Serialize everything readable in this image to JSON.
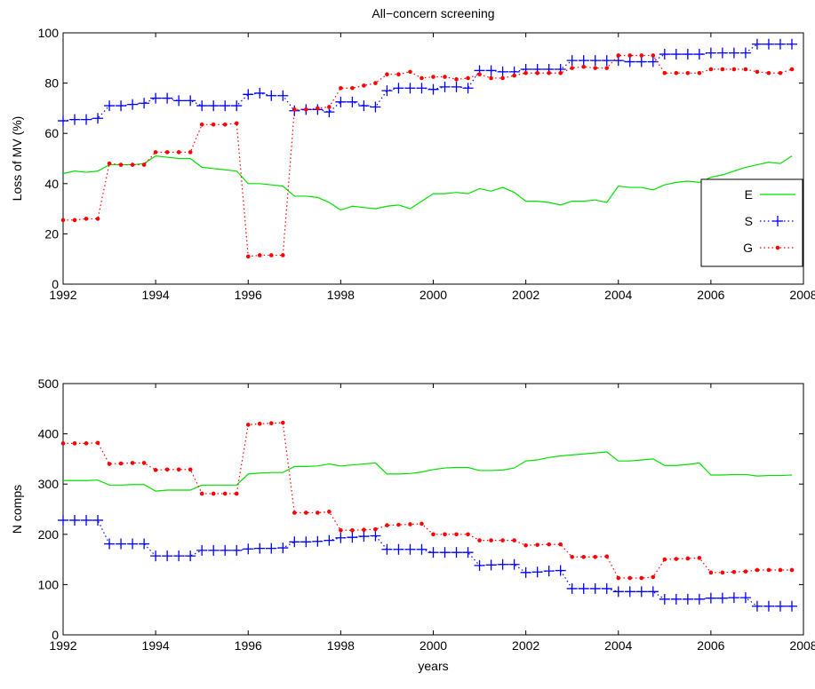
{
  "chart_data": [
    {
      "type": "line",
      "title": "All−concern screening",
      "y_label": "Loss of MV (%)",
      "x": [
        1992,
        1992.25,
        1992.5,
        1992.75,
        1993,
        1993.25,
        1993.5,
        1993.75,
        1994,
        1994.25,
        1994.5,
        1994.75,
        1995,
        1995.25,
        1995.5,
        1995.75,
        1996,
        1996.25,
        1996.5,
        1996.75,
        1997,
        1997.25,
        1997.5,
        1997.75,
        1998,
        1998.25,
        1998.5,
        1998.75,
        1999,
        1999.25,
        1999.5,
        1999.75,
        2000,
        2000.25,
        2000.5,
        2000.75,
        2001,
        2001.25,
        2001.5,
        2001.75,
        2002,
        2002.25,
        2002.5,
        2002.75,
        2003,
        2003.25,
        2003.5,
        2003.75,
        2004,
        2004.25,
        2004.5,
        2004.75,
        2005,
        2005.25,
        2005.5,
        2005.75,
        2006,
        2006.25,
        2006.5,
        2006.75,
        2007,
        2007.25,
        2007.5,
        2007.75
      ],
      "xlim": [
        1992,
        2008
      ],
      "xticks": [
        1992,
        1994,
        1996,
        1998,
        2000,
        2002,
        2004,
        2006,
        2008
      ],
      "ylim": [
        0,
        100
      ],
      "yticks": [
        0,
        20,
        40,
        60,
        80,
        100
      ],
      "legend": "lower right",
      "series": [
        {
          "name": "E",
          "color": "#00e000",
          "linestyle": "solid",
          "marker": "none",
          "values": [
            44,
            45,
            44.5,
            45,
            47.5,
            47.5,
            47.5,
            48,
            51,
            50.5,
            50,
            50,
            46.5,
            46,
            45.5,
            45,
            40,
            40,
            39.5,
            39,
            35,
            35,
            34.5,
            32.5,
            29.5,
            31,
            30.5,
            30,
            31,
            31.5,
            30,
            33,
            36,
            36,
            36.5,
            36,
            38,
            37,
            38.5,
            36.5,
            33,
            33,
            32.5,
            31.5,
            33,
            33,
            33.5,
            32.5,
            39,
            38.5,
            38.5,
            37.5,
            39.5,
            40.5,
            41,
            40.5,
            42.5,
            43.5,
            45,
            46.5,
            47.5,
            48.5,
            48,
            51
          ]
        },
        {
          "name": "S",
          "color": "#0000ff",
          "linestyle": "dotted",
          "marker": "plus",
          "values": [
            65,
            65.5,
            65.5,
            66,
            71,
            71,
            71.5,
            72,
            74,
            74,
            73,
            73,
            71,
            71,
            71,
            71,
            75.5,
            76,
            75,
            75,
            69,
            69.5,
            69.5,
            68.5,
            72.5,
            72.5,
            71,
            70.5,
            77,
            78,
            78,
            78,
            77.5,
            78.5,
            78.5,
            78,
            85,
            85,
            84.5,
            84.5,
            85.5,
            85.5,
            85.5,
            85.5,
            89,
            89,
            89,
            89,
            89,
            88.5,
            88.5,
            88.5,
            91.5,
            91.5,
            91.5,
            91.5,
            92,
            92,
            92,
            92,
            95.5,
            95.5,
            95.5,
            95.5
          ]
        },
        {
          "name": "G",
          "color": "#ff0000",
          "linestyle": "dotted",
          "marker": "dot",
          "values": [
            25.5,
            25.5,
            26,
            26,
            48,
            47.5,
            47.5,
            47.5,
            52.5,
            52.5,
            52.5,
            52.5,
            63.5,
            63.5,
            63.5,
            64,
            11,
            11.5,
            11.5,
            11.5,
            69.5,
            69.5,
            70,
            70.5,
            78,
            78,
            79,
            80,
            83.5,
            83.5,
            84.5,
            82,
            82.5,
            82.5,
            81.5,
            82,
            83.5,
            82,
            82,
            83,
            84,
            84,
            84,
            84,
            86,
            86.5,
            86,
            86,
            91,
            91,
            91,
            91,
            84,
            84,
            84,
            84,
            85.5,
            85.5,
            85.5,
            85.5,
            84.5,
            84,
            84,
            85.5
          ]
        }
      ]
    },
    {
      "type": "line",
      "y_label": "N comps",
      "x_label": "years",
      "x": [
        1992,
        1992.25,
        1992.5,
        1992.75,
        1993,
        1993.25,
        1993.5,
        1993.75,
        1994,
        1994.25,
        1994.5,
        1994.75,
        1995,
        1995.25,
        1995.5,
        1995.75,
        1996,
        1996.25,
        1996.5,
        1996.75,
        1997,
        1997.25,
        1997.5,
        1997.75,
        1998,
        1998.25,
        1998.5,
        1998.75,
        1999,
        1999.25,
        1999.5,
        1999.75,
        2000,
        2000.25,
        2000.5,
        2000.75,
        2001,
        2001.25,
        2001.5,
        2001.75,
        2002,
        2002.25,
        2002.5,
        2002.75,
        2003,
        2003.25,
        2003.5,
        2003.75,
        2004,
        2004.25,
        2004.5,
        2004.75,
        2005,
        2005.25,
        2005.5,
        2005.75,
        2006,
        2006.25,
        2006.5,
        2006.75,
        2007,
        2007.25,
        2007.5,
        2007.75
      ],
      "xlim": [
        1992,
        2008
      ],
      "xticks": [
        1992,
        1994,
        1996,
        1998,
        2000,
        2002,
        2004,
        2006,
        2008
      ],
      "ylim": [
        0,
        500
      ],
      "yticks": [
        0,
        100,
        200,
        300,
        400,
        500
      ],
      "series": [
        {
          "name": "E",
          "color": "#00e000",
          "linestyle": "solid",
          "marker": "none",
          "values": [
            307,
            307,
            307,
            308,
            298,
            298,
            299,
            299,
            286,
            288,
            288,
            288,
            298,
            298,
            298,
            298,
            320,
            322,
            323,
            323,
            335,
            335,
            336,
            340,
            336,
            338,
            340,
            342,
            320,
            320,
            321,
            324,
            329,
            332,
            333,
            333,
            327,
            327,
            328,
            332,
            346,
            348,
            353,
            356,
            358,
            360,
            362,
            364,
            346,
            346,
            348,
            350,
            337,
            337,
            339,
            342,
            318,
            318,
            319,
            319,
            316,
            317,
            317,
            318
          ]
        },
        {
          "name": "S",
          "color": "#0000ff",
          "linestyle": "dotted",
          "marker": "plus",
          "values": [
            228,
            228,
            228,
            228,
            181,
            181,
            181,
            181,
            157,
            157,
            157,
            157,
            168,
            168,
            168,
            168,
            171,
            172,
            172,
            173,
            185,
            185,
            186,
            188,
            193,
            194,
            196,
            197,
            170,
            170,
            170,
            170,
            164,
            164,
            164,
            164,
            138,
            139,
            140,
            140,
            124,
            125,
            127,
            128,
            92,
            92,
            92,
            92,
            86,
            86,
            86,
            86,
            71,
            71,
            71,
            71,
            73,
            73,
            74,
            74,
            57,
            57,
            57,
            57
          ]
        },
        {
          "name": "G",
          "color": "#ff0000",
          "linestyle": "dotted",
          "marker": "dot",
          "values": [
            381,
            381,
            381,
            382,
            340,
            341,
            342,
            342,
            328,
            329,
            329,
            329,
            281,
            281,
            281,
            281,
            418,
            420,
            421,
            422,
            243,
            243,
            243,
            245,
            208,
            208,
            209,
            210,
            218,
            219,
            220,
            221,
            200,
            200,
            200,
            200,
            188,
            188,
            188,
            188,
            178,
            179,
            180,
            180,
            155,
            155,
            155,
            156,
            113,
            113,
            113,
            115,
            150,
            151,
            152,
            153,
            124,
            124,
            125,
            126,
            129,
            129,
            129,
            129
          ]
        }
      ]
    }
  ]
}
